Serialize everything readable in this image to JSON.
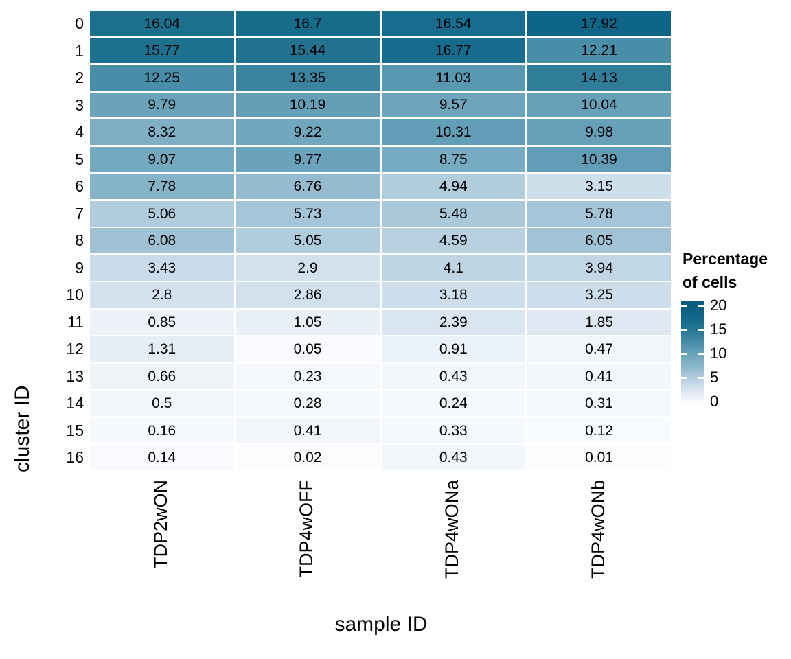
{
  "chart_data": {
    "type": "heatmap",
    "title": "",
    "xlabel": "sample ID",
    "ylabel": "cluster ID",
    "x_categories": [
      "TDP2wON",
      "TDP4wOFF",
      "TDP4wONa",
      "TDP4wONb"
    ],
    "y_categories": [
      "0",
      "1",
      "2",
      "3",
      "4",
      "5",
      "6",
      "7",
      "8",
      "9",
      "10",
      "11",
      "12",
      "13",
      "14",
      "15",
      "16"
    ],
    "rows": [
      {
        "cluster": "0",
        "values": [
          "16.04",
          "16.7",
          "16.54",
          "17.92"
        ]
      },
      {
        "cluster": "1",
        "values": [
          "15.77",
          "15.44",
          "16.77",
          "12.21"
        ]
      },
      {
        "cluster": "2",
        "values": [
          "12.25",
          "13.35",
          "11.03",
          "14.13"
        ]
      },
      {
        "cluster": "3",
        "values": [
          "9.79",
          "10.19",
          "9.57",
          "10.04"
        ]
      },
      {
        "cluster": "4",
        "values": [
          "8.32",
          "9.22",
          "10.31",
          "9.98"
        ]
      },
      {
        "cluster": "5",
        "values": [
          "9.07",
          "9.77",
          "8.75",
          "10.39"
        ]
      },
      {
        "cluster": "6",
        "values": [
          "7.78",
          "6.76",
          "4.94",
          "3.15"
        ]
      },
      {
        "cluster": "7",
        "values": [
          "5.06",
          "5.73",
          "5.48",
          "5.78"
        ]
      },
      {
        "cluster": "8",
        "values": [
          "6.08",
          "5.05",
          "4.59",
          "6.05"
        ]
      },
      {
        "cluster": "9",
        "values": [
          "3.43",
          "2.9",
          "4.1",
          "3.94"
        ]
      },
      {
        "cluster": "10",
        "values": [
          "2.8",
          "2.86",
          "3.18",
          "3.25"
        ]
      },
      {
        "cluster": "11",
        "values": [
          "0.85",
          "1.05",
          "2.39",
          "1.85"
        ]
      },
      {
        "cluster": "12",
        "values": [
          "1.31",
          "0.05",
          "0.91",
          "0.47"
        ]
      },
      {
        "cluster": "13",
        "values": [
          "0.66",
          "0.23",
          "0.43",
          "0.41"
        ]
      },
      {
        "cluster": "14",
        "values": [
          "0.5",
          "0.28",
          "0.24",
          "0.31"
        ]
      },
      {
        "cluster": "15",
        "values": [
          "0.16",
          "0.41",
          "0.33",
          "0.12"
        ]
      },
      {
        "cluster": "16",
        "values": [
          "0.14",
          "0.02",
          "0.43",
          "0.01"
        ]
      }
    ],
    "legend": {
      "title_line1": "Percentage",
      "title_line2": "of cells",
      "ticks": [
        "20",
        "15",
        "10",
        "5",
        "0"
      ],
      "tick_values": [
        20,
        15,
        10,
        5,
        0
      ],
      "scale_top_value": 21,
      "scale_bottom_value": -0.7
    },
    "color_scale": {
      "low": "#FAFCFE",
      "high": "#05597D",
      "stops": [
        [
          0,
          "#FAFCFE"
        ],
        [
          1,
          "#EAF0F7"
        ],
        [
          2,
          "#DEE8F2"
        ],
        [
          3,
          "#D0E0ED"
        ],
        [
          4,
          "#C1D6E5"
        ],
        [
          5,
          "#B1CDDD"
        ],
        [
          6,
          "#A1C3D6"
        ],
        [
          7,
          "#90B9CD"
        ],
        [
          8,
          "#82B1C6"
        ],
        [
          9,
          "#75AAC0"
        ],
        [
          10,
          "#67A1B9"
        ],
        [
          11,
          "#5898B1"
        ],
        [
          12,
          "#4C90AA"
        ],
        [
          13,
          "#3F87A2"
        ],
        [
          14,
          "#327E9A"
        ],
        [
          15,
          "#267591"
        ],
        [
          16,
          "#1C6F8F"
        ],
        [
          17,
          "#156A8B"
        ],
        [
          18,
          "#0F6587"
        ],
        [
          19,
          "#0B6183"
        ],
        [
          20,
          "#075D80"
        ],
        [
          21,
          "#05597D"
        ]
      ]
    },
    "layout": {
      "grid": "off",
      "legend_position": "right",
      "cell_text_color": "#000000",
      "background": "#FFFFFF"
    }
  }
}
